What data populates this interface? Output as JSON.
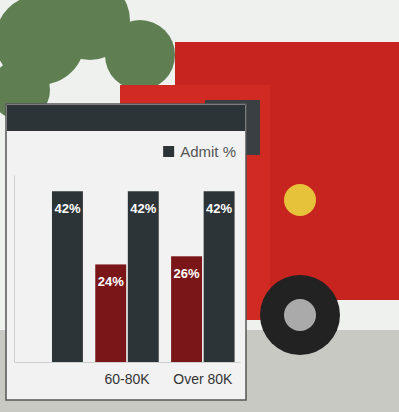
{
  "chart_data": {
    "type": "bar",
    "categories": [
      null,
      "60-80K",
      "Over 80K"
    ],
    "series": [
      {
        "color": "#7b1618",
        "values": [
          null,
          24,
          26
        ],
        "value_labels": [
          null,
          "24%",
          "26%"
        ]
      },
      {
        "name": "Admit %",
        "color": "#2d3438",
        "values": [
          42,
          42,
          42
        ],
        "value_labels": [
          "42%",
          "42%",
          "42%"
        ]
      }
    ],
    "ylim": [
      0,
      46
    ],
    "data_labels": true,
    "tick_labels": "x",
    "legend": "top-right",
    "grid": false
  }
}
